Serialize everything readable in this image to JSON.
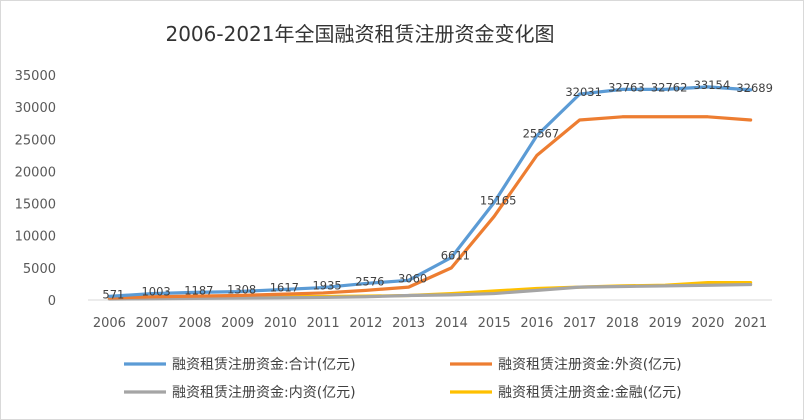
{
  "chart_data": {
    "type": "line",
    "title": "2006-2021年全国融资租赁注册资金变化图",
    "xlabel": "",
    "ylabel": "",
    "ylim": [
      0,
      35000
    ],
    "yticks": [
      0,
      5000,
      10000,
      15000,
      20000,
      25000,
      30000,
      35000
    ],
    "grid": false,
    "legend_position": "bottom",
    "categories": [
      "2006",
      "2007",
      "2008",
      "2009",
      "2010",
      "2011",
      "2012",
      "2013",
      "2014",
      "2015",
      "2016",
      "2017",
      "2018",
      "2019",
      "2020",
      "2021"
    ],
    "series": [
      {
        "name": "融资租赁注册资金:合计(亿元)",
        "color": "#5b9bd5",
        "values": [
          571,
          1003,
          1187,
          1308,
          1617,
          1935,
          2576,
          3060,
          6611,
          15165,
          25567,
          32031,
          32763,
          32762,
          33154,
          32689
        ],
        "labels": [
          "571",
          "1003",
          "1187",
          "1308",
          "1617",
          "1935",
          "2576",
          "3060",
          "6611",
          "15165",
          "25567",
          "32031",
          "32763",
          "32762",
          "33154",
          "32689"
        ]
      },
      {
        "name": "融资租赁注册资金:外资(亿元)",
        "color": "#ed7d31",
        "values": [
          300,
          500,
          600,
          700,
          900,
          1100,
          1500,
          2000,
          5000,
          13000,
          22500,
          28000,
          28500,
          28500,
          28500,
          28000
        ]
      },
      {
        "name": "融资租赁注册资金:内资(亿元)",
        "color": "#a5a5a5",
        "values": [
          150,
          200,
          250,
          300,
          350,
          400,
          500,
          700,
          800,
          1000,
          1500,
          2000,
          2100,
          2200,
          2300,
          2400
        ]
      },
      {
        "name": "融资租赁注册资金:金融(亿元)",
        "color": "#ffc000",
        "values": [
          200,
          300,
          400,
          450,
          500,
          550,
          600,
          700,
          1000,
          1400,
          1800,
          2000,
          2200,
          2300,
          2700,
          2700
        ]
      }
    ]
  }
}
